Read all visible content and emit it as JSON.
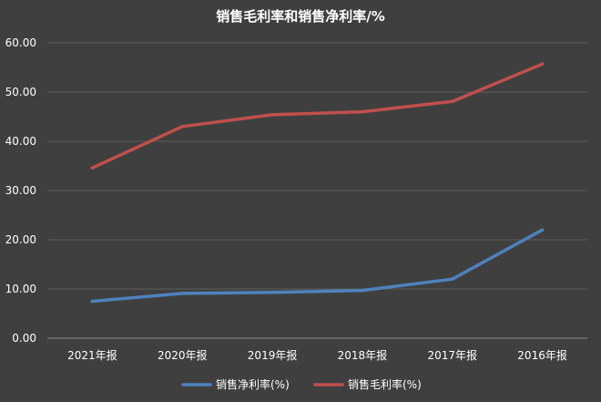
{
  "chart_data": {
    "type": "line",
    "title": "销售毛利率和销售净利率/%",
    "categories": [
      "2021年报",
      "2020年报",
      "2019年报",
      "2018年报",
      "2017年报",
      "2016年报"
    ],
    "ylim": [
      0,
      60
    ],
    "yticks": [
      "0.00",
      "10.00",
      "20.00",
      "30.00",
      "40.00",
      "50.00",
      "60.00"
    ],
    "grid": true,
    "legend_position": "bottom",
    "series": [
      {
        "name": "销售净利率(%)",
        "color": "#4f81bd",
        "values": [
          7.5,
          9.1,
          9.3,
          9.7,
          12.0,
          22.0
        ]
      },
      {
        "name": "销售毛利率(%)",
        "color": "#c0504d",
        "values": [
          34.6,
          43.0,
          45.4,
          46.0,
          48.1,
          55.7
        ]
      }
    ]
  }
}
